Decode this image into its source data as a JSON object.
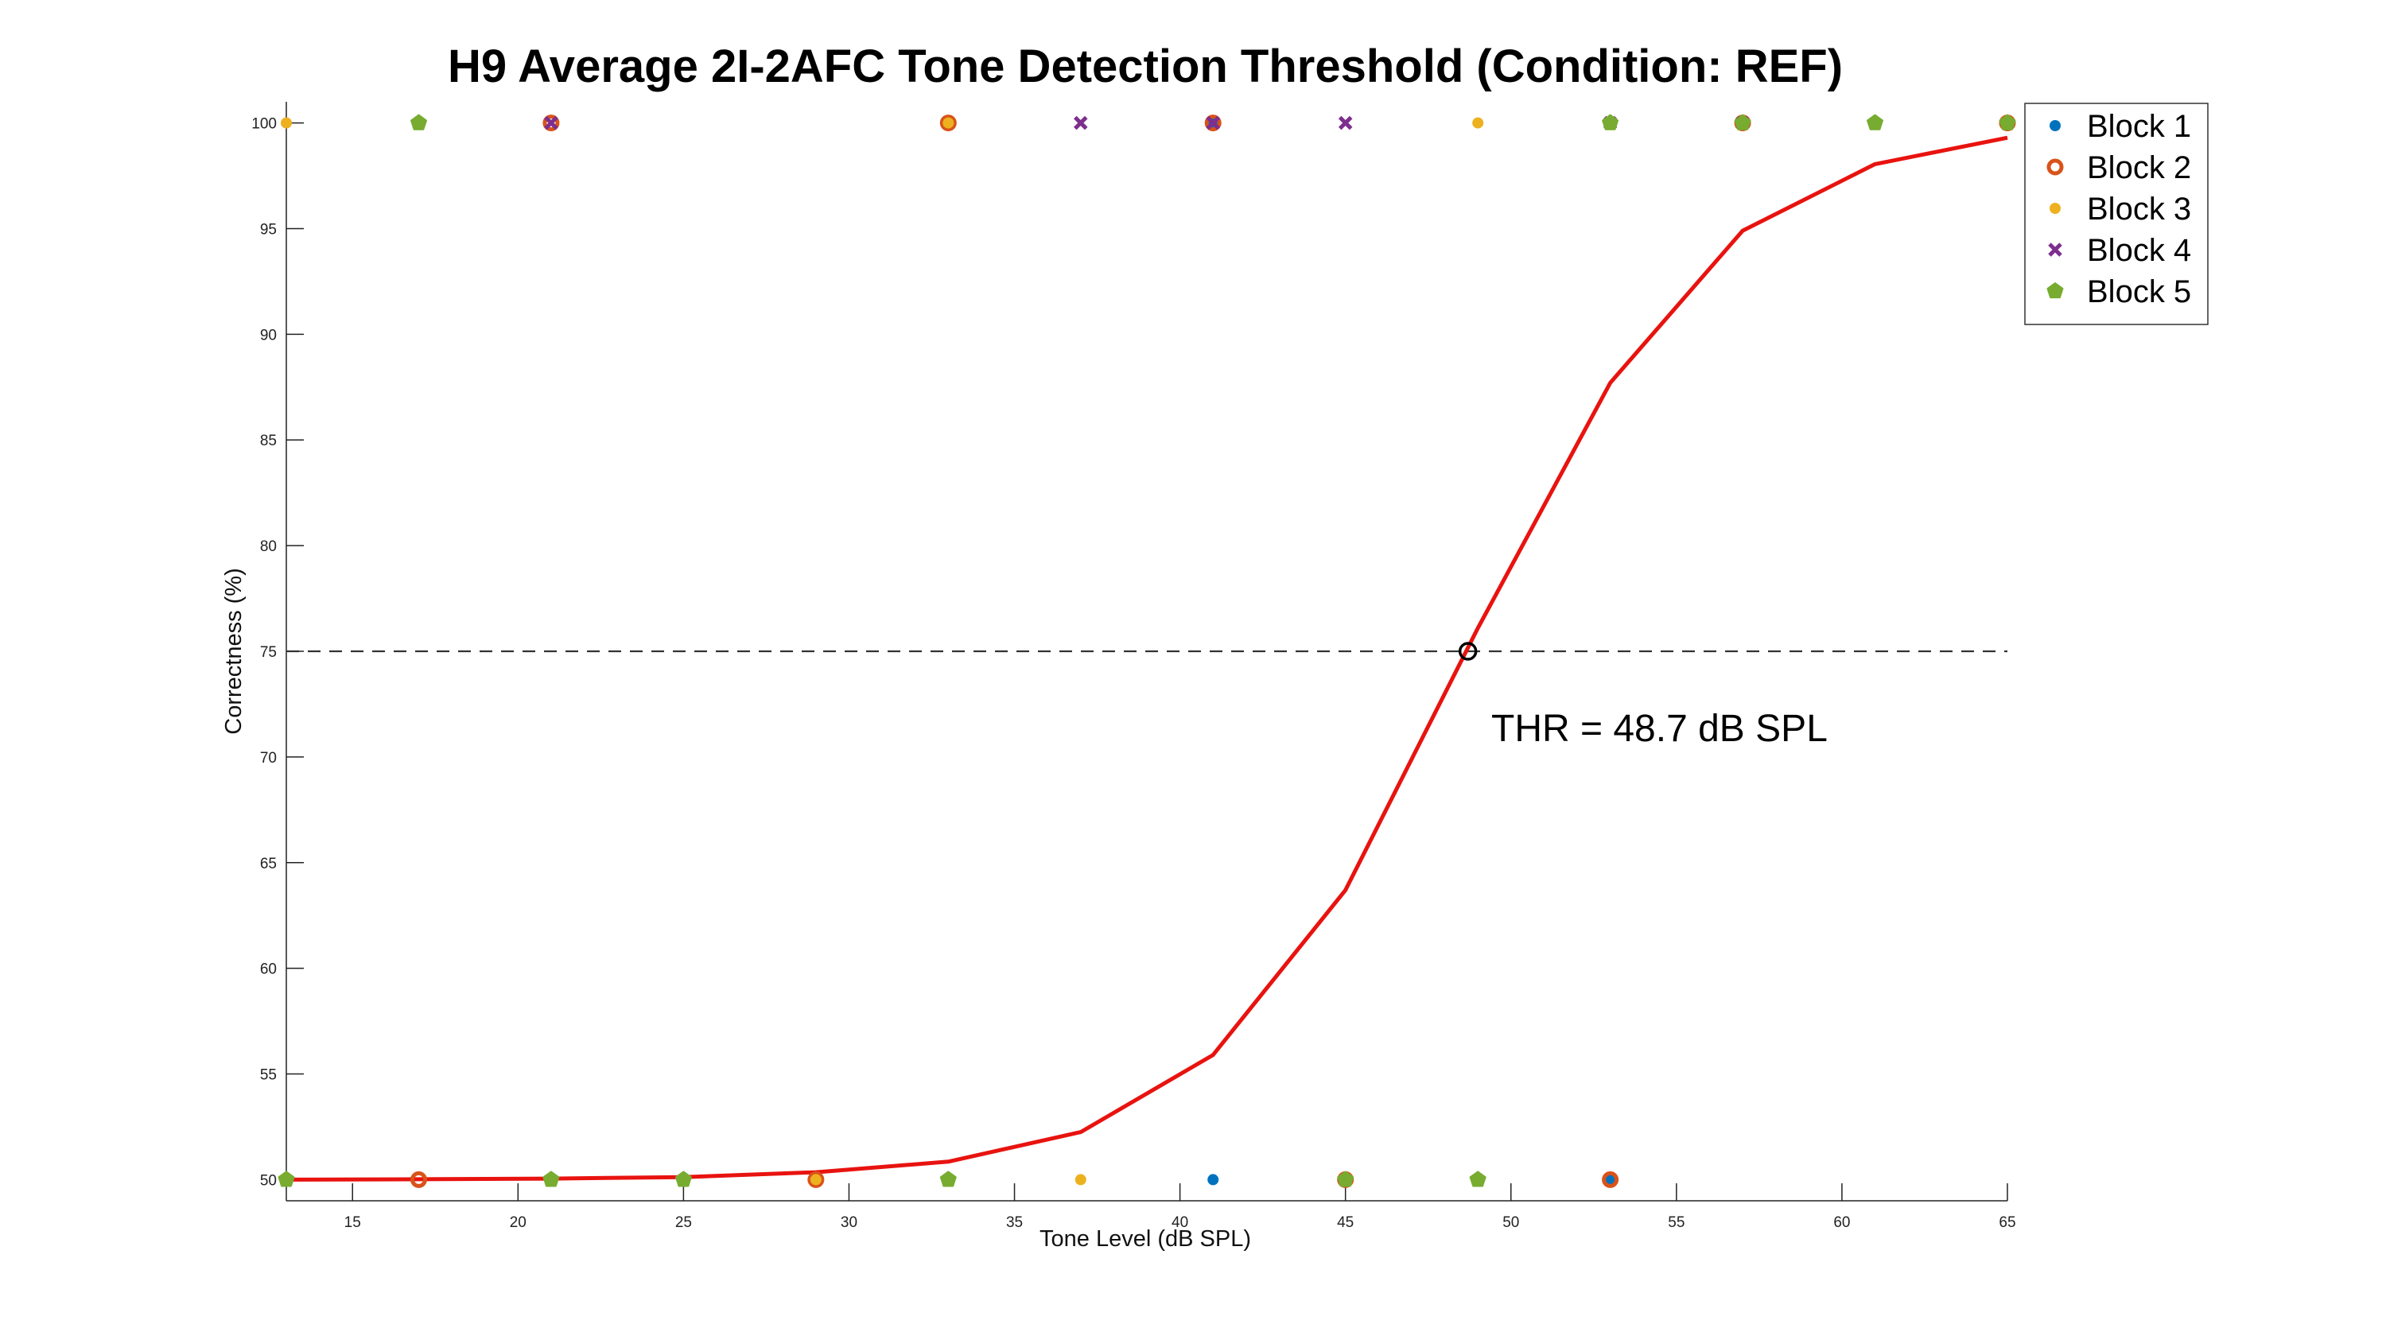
{
  "chart_data": {
    "type": "scatter",
    "title": "H9 Average 2I-2AFC Tone Detection Threshold (Condition: REF)",
    "xlabel": "Tone Level (dB SPL)",
    "ylabel": "Correctness (%)",
    "xlim": [
      13,
      65
    ],
    "ylim": [
      49,
      101
    ],
    "xticks": [
      15,
      20,
      25,
      30,
      35,
      40,
      45,
      50,
      55,
      60,
      65
    ],
    "yticks": [
      50,
      55,
      60,
      65,
      70,
      75,
      80,
      85,
      90,
      95,
      100
    ],
    "grid": false,
    "legend_position": "top-right",
    "series": [
      {
        "name": "Block 1",
        "color": "#0072BD",
        "marker": "filled-circle",
        "points": [
          [
            41,
            50
          ],
          [
            41,
            100
          ],
          [
            53,
            50
          ],
          [
            49,
            50
          ]
        ]
      },
      {
        "name": "Block 2",
        "color": "#D95319",
        "marker": "open-circle-bold",
        "points": [
          [
            17,
            50
          ],
          [
            21,
            100
          ],
          [
            29,
            50
          ],
          [
            33,
            100
          ],
          [
            41,
            100
          ],
          [
            45,
            50
          ],
          [
            53,
            50
          ],
          [
            57,
            100
          ],
          [
            65,
            100
          ]
        ]
      },
      {
        "name": "Block 3",
        "color": "#EDB120",
        "marker": "filled-circle",
        "points": [
          [
            13,
            100
          ],
          [
            13,
            50
          ],
          [
            29,
            50
          ],
          [
            33,
            100
          ],
          [
            37,
            50
          ],
          [
            49,
            100
          ],
          [
            61,
            100
          ],
          [
            65,
            100
          ]
        ]
      },
      {
        "name": "Block 4",
        "color": "#7E2F8E",
        "marker": "cross",
        "points": [
          [
            21,
            100
          ],
          [
            37,
            100
          ],
          [
            41,
            100
          ],
          [
            45,
            100
          ],
          [
            53,
            100
          ],
          [
            57,
            100
          ]
        ]
      },
      {
        "name": "Block 5",
        "color": "#77AC30",
        "marker": "pentagon",
        "points": [
          [
            13,
            50
          ],
          [
            17,
            100
          ],
          [
            21,
            50
          ],
          [
            25,
            50
          ],
          [
            33,
            50
          ],
          [
            45,
            50
          ],
          [
            49,
            50
          ],
          [
            53,
            100
          ],
          [
            57,
            100
          ],
          [
            61,
            100
          ],
          [
            65,
            100
          ]
        ]
      }
    ],
    "fit": {
      "color": "#E8130F",
      "x": [
        13,
        17,
        21,
        25,
        29,
        33,
        37,
        41,
        45,
        49,
        53,
        57,
        61,
        65
      ],
      "y": [
        50,
        50.02,
        50.05,
        50.12,
        50.35,
        50.85,
        52.25,
        55.9,
        63.7,
        76.1,
        87.7,
        94.9,
        98.05,
        99.3
      ]
    },
    "threshold": {
      "x": 48.7,
      "y": 75,
      "label": "THR = 48.7 dB SPL",
      "line_color": "#333333"
    }
  }
}
